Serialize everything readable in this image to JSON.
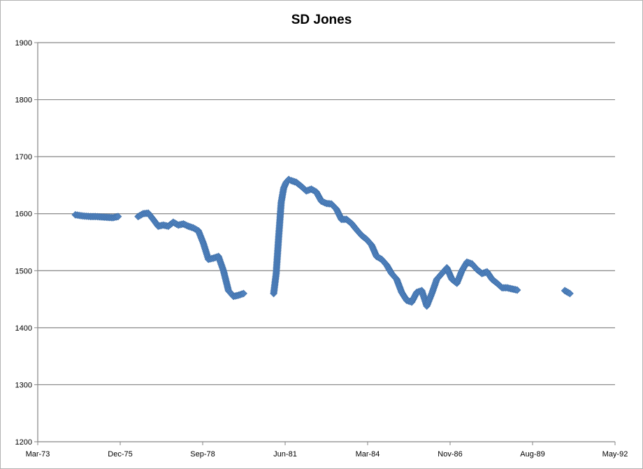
{
  "chart_data": {
    "type": "scatter",
    "title": "SD Jones",
    "xlabel": "",
    "ylabel": "",
    "ylim": [
      1200,
      1900
    ],
    "xlim": [
      "1973-03",
      "1992-05"
    ],
    "y_ticks": [
      1200,
      1300,
      1400,
      1500,
      1600,
      1700,
      1800,
      1900
    ],
    "x_ticks": [
      "Mar-73",
      "Dec-75",
      "Sep-78",
      "Jun-81",
      "Mar-84",
      "Nov-86",
      "Aug-89",
      "May-92"
    ],
    "grid": "horizontal",
    "legend": "none",
    "marker": "diamond",
    "color": "#4f81bd",
    "series": [
      {
        "x": [
          "1974-06",
          "1974-09",
          "1974-12",
          "1975-02",
          "1975-05",
          "1975-09",
          "1975-11",
          "1976-07",
          "1976-09",
          "1976-11",
          "1977-01",
          "1977-03",
          "1977-05",
          "1977-07",
          "1977-09",
          "1977-11",
          "1978-01",
          "1978-03",
          "1978-05",
          "1978-07",
          "1978-09",
          "1978-11",
          "1979-01",
          "1979-03",
          "1979-05",
          "1979-07",
          "1979-09",
          "1979-11",
          "1980-01",
          "1981-01",
          "1981-02",
          "1981-03",
          "1981-04",
          "1981-05",
          "1981-06",
          "1981-07",
          "1981-08",
          "1981-10",
          "1981-12",
          "1982-02",
          "1982-04",
          "1982-06",
          "1982-08",
          "1982-10",
          "1982-12",
          "1983-02",
          "1983-04",
          "1983-06",
          "1983-08",
          "1983-10",
          "1983-12",
          "1984-02",
          "1984-04",
          "1984-06",
          "1984-08",
          "1984-10",
          "1984-12",
          "1985-02",
          "1985-04",
          "1985-06",
          "1985-08",
          "1985-10",
          "1985-12",
          "1986-02",
          "1986-04",
          "1986-06",
          "1986-08",
          "1986-10",
          "1986-12",
          "1987-02",
          "1987-04",
          "1987-06",
          "1987-08",
          "1987-10",
          "1987-12",
          "1988-02",
          "1988-04",
          "1988-06",
          "1988-08",
          "1988-10",
          "1988-12",
          "1989-02",
          "1990-09",
          "1990-11"
        ],
        "y": [
          1598,
          1596,
          1595,
          1595,
          1594,
          1593,
          1595,
          1595,
          1600,
          1601,
          1590,
          1578,
          1580,
          1578,
          1585,
          1580,
          1582,
          1578,
          1575,
          1570,
          1548,
          1520,
          1522,
          1525,
          1500,
          1465,
          1455,
          1457,
          1460,
          1460,
          1495,
          1560,
          1620,
          1645,
          1655,
          1660,
          1658,
          1655,
          1648,
          1640,
          1643,
          1638,
          1622,
          1618,
          1617,
          1608,
          1590,
          1590,
          1583,
          1572,
          1562,
          1555,
          1545,
          1525,
          1520,
          1510,
          1495,
          1485,
          1462,
          1448,
          1445,
          1462,
          1465,
          1438,
          1460,
          1485,
          1495,
          1505,
          1485,
          1478,
          1500,
          1515,
          1512,
          1502,
          1495,
          1498,
          1485,
          1478,
          1470,
          1470,
          1468,
          1466,
          1465,
          1460
        ]
      }
    ]
  }
}
